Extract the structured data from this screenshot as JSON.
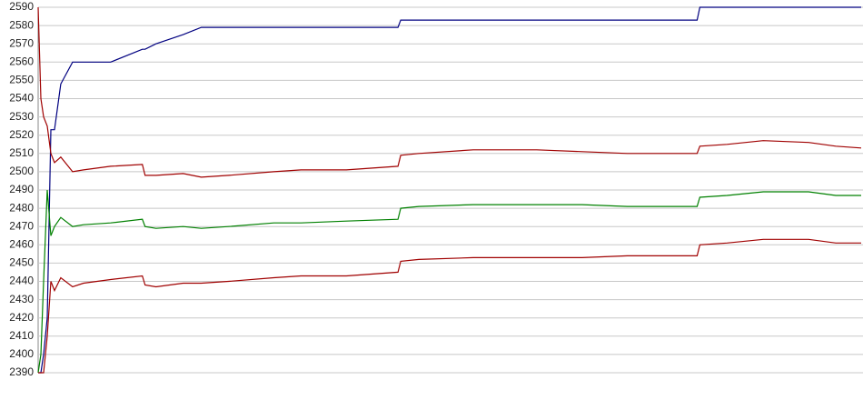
{
  "chart_data": {
    "type": "line",
    "x": [
      0,
      3,
      6,
      10,
      14,
      18,
      25,
      38,
      50,
      80,
      115,
      118,
      130,
      160,
      180,
      210,
      260,
      290,
      340,
      397,
      400,
      420,
      480,
      550,
      600,
      650,
      700,
      727,
      730,
      760,
      800,
      850,
      880,
      908
    ],
    "xlim": [
      0,
      908
    ],
    "ylim": [
      2390,
      2590
    ],
    "yticks": [
      2390,
      2400,
      2410,
      2420,
      2430,
      2440,
      2450,
      2460,
      2470,
      2480,
      2490,
      2500,
      2510,
      2520,
      2530,
      2540,
      2550,
      2560,
      2570,
      2580,
      2590
    ],
    "grid": true,
    "series": [
      {
        "color": "#000080",
        "values": [
          2390,
          2390,
          2400,
          2420,
          2523,
          2523,
          2548,
          2560,
          2560,
          2560,
          2567,
          2567,
          2570,
          2575,
          2579,
          2579,
          2579,
          2579,
          2579,
          2579,
          2583,
          2583,
          2583,
          2583,
          2583,
          2583,
          2583,
          2583,
          2590,
          2590,
          2590,
          2590,
          2590,
          2590
        ]
      },
      {
        "color": "#a00000",
        "values": [
          2590,
          2540,
          2530,
          2525,
          2510,
          2505,
          2508,
          2500,
          2501,
          2503,
          2504,
          2498,
          2498,
          2499,
          2497,
          2498,
          2500,
          2501,
          2501,
          2503,
          2509,
          2510,
          2512,
          2512,
          2511,
          2510,
          2510,
          2510,
          2514,
          2515,
          2517,
          2516,
          2514,
          2513
        ]
      },
      {
        "color": "#008000",
        "values": [
          2390,
          2400,
          2440,
          2490,
          2465,
          2470,
          2475,
          2470,
          2471,
          2472,
          2474,
          2470,
          2469,
          2470,
          2469,
          2470,
          2472,
          2472,
          2473,
          2474,
          2480,
          2481,
          2482,
          2482,
          2482,
          2481,
          2481,
          2481,
          2486,
          2487,
          2489,
          2489,
          2487,
          2487
        ]
      },
      {
        "color": "#a00000",
        "values": [
          2390,
          2390,
          2390,
          2410,
          2440,
          2435,
          2442,
          2437,
          2439,
          2441,
          2443,
          2438,
          2437,
          2439,
          2439,
          2440,
          2442,
          2443,
          2443,
          2445,
          2451,
          2452,
          2453,
          2453,
          2453,
          2454,
          2454,
          2454,
          2460,
          2461,
          2463,
          2463,
          2461,
          2461
        ]
      }
    ]
  }
}
